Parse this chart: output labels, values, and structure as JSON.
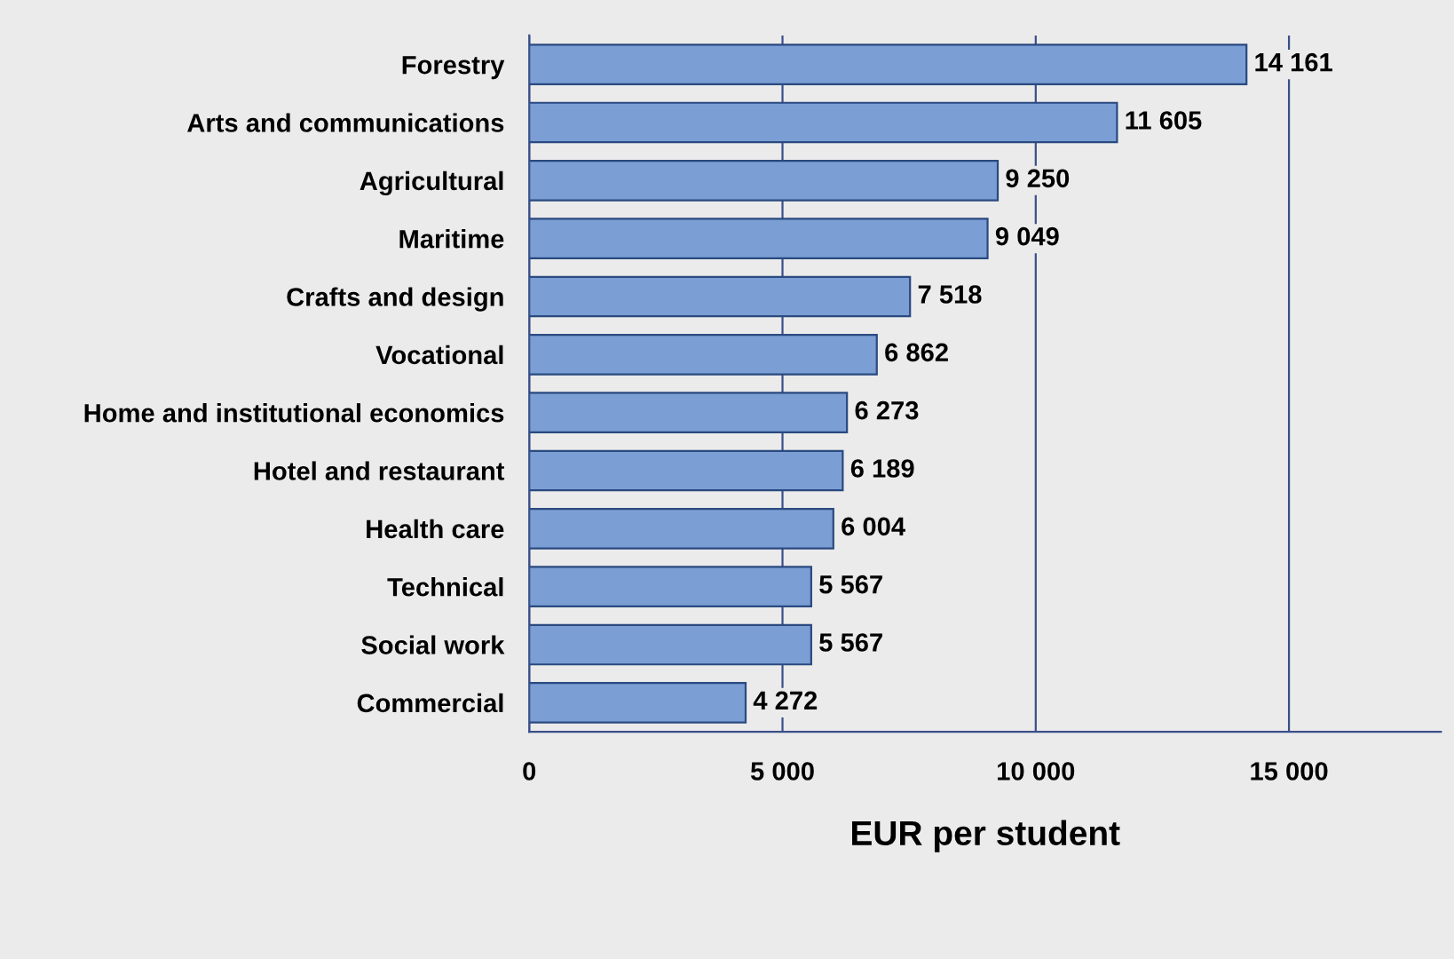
{
  "chart_data": {
    "type": "bar",
    "orientation": "horizontal",
    "xlabel": "EUR per student",
    "categories": [
      "Forestry",
      "Arts and communications",
      "Agricultural",
      "Maritime",
      "Crafts and design",
      "Vocational",
      "Home and institutional economics",
      "Hotel and restaurant",
      "Health care",
      "Technical",
      "Social work",
      "Commercial"
    ],
    "values": [
      14161,
      11605,
      9250,
      9049,
      7518,
      6862,
      6273,
      6189,
      6004,
      5567,
      5567,
      4272
    ],
    "value_labels": [
      "14 161",
      "11 605",
      "9 250",
      "9 049",
      "7 518",
      "6 862",
      "6 273",
      "6 189",
      "6 004",
      "5 567",
      "5 567",
      "4 272"
    ],
    "color": "#7b9fd4",
    "xlim": [
      0,
      18000
    ],
    "xticks": [
      0,
      {
        "value": 5000,
        "label": "5 000"
      },
      {
        "value": 10000,
        "label": "10 000"
      },
      {
        "value": 15000,
        "label": "15 000"
      }
    ],
    "grid": "x"
  }
}
